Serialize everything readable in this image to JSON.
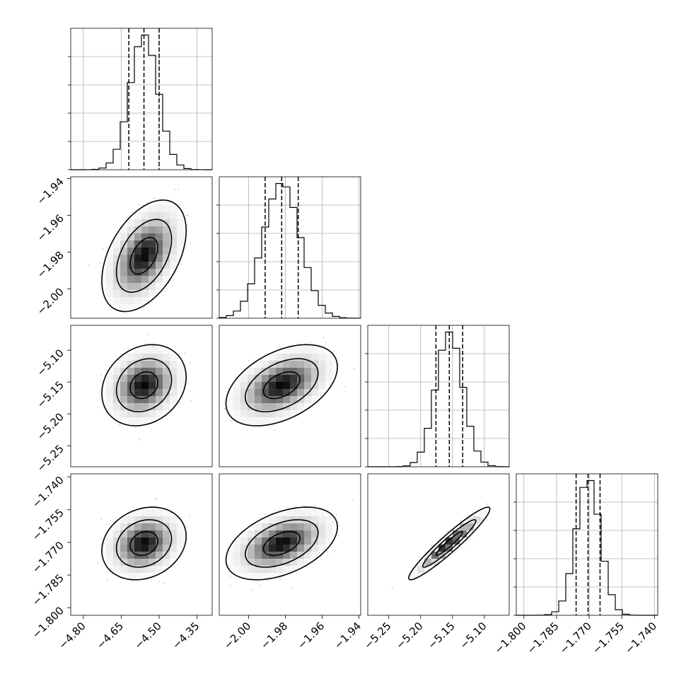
{
  "chart_data": {
    "type": "corner",
    "parameters": [
      {
        "range": [
          -4.85,
          -4.29
        ],
        "mean": -4.56,
        "sd": 0.055,
        "q16": -4.62,
        "q50": -4.56,
        "q84": -4.5,
        "ticks": [
          -4.8,
          -4.65,
          -4.5,
          -4.35
        ],
        "tick_labels": [
          "−4.80",
          "−4.65",
          "−4.50",
          "−4.35"
        ]
      },
      {
        "range": [
          -2.016,
          -1.939
        ],
        "mean": -1.982,
        "sd": 0.01,
        "q16": -1.991,
        "q50": -1.982,
        "q84": -1.973,
        "ticks": [
          -2.0,
          -1.98,
          -1.96,
          -1.94
        ],
        "tick_labels": [
          "−2.00",
          "−1.98",
          "−1.96",
          "−1.94"
        ]
      },
      {
        "range": [
          -5.283,
          -5.061
        ],
        "mean": -5.155,
        "sd": 0.021,
        "q16": -5.176,
        "q50": -5.155,
        "q84": -5.134,
        "ticks": [
          -5.25,
          -5.2,
          -5.15,
          -5.1
        ],
        "tick_labels": [
          "−5.25",
          "−5.20",
          "−5.15",
          "−5.10"
        ]
      },
      {
        "range": [
          -1.8035,
          -1.7385
        ],
        "mean": -1.7705,
        "sd": 0.0055,
        "q16": -1.776,
        "q50": -1.7705,
        "q84": -1.765,
        "ticks": [
          -1.8,
          -1.785,
          -1.77,
          -1.755,
          -1.74
        ],
        "tick_labels": [
          "−1.800",
          "−1.785",
          "−1.770",
          "−1.755",
          "−1.740"
        ]
      }
    ],
    "y_tick_labels": [
      null,
      {
        "ticks": [
          -1.94,
          -1.96,
          -1.98,
          -2.0
        ],
        "labels": [
          "−1.94",
          "−1.96",
          "−1.98",
          "−2.00"
        ]
      },
      {
        "ticks": [
          -5.1,
          -5.15,
          -5.2,
          -5.25
        ],
        "labels": [
          "−5.10",
          "−5.15",
          "−5.20",
          "−5.25"
        ]
      },
      {
        "ticks": [
          -1.74,
          -1.755,
          -1.77,
          -1.785,
          -1.8
        ],
        "labels": [
          "−1.740",
          "−1.755",
          "−1.770",
          "−1.785",
          "−1.800"
        ]
      }
    ],
    "correlations": {
      "1-0": 0.45,
      "2-0": 0.2,
      "2-1": 0.45,
      "3-0": 0.2,
      "3-1": 0.45,
      "3-2": 0.95
    },
    "histogram_bins": 20,
    "grid": true,
    "quantile_lines": "dashed",
    "contour_levels": [
      0.39,
      0.86,
      0.99
    ],
    "colors": {
      "hist": "#000000",
      "points": "#9a9a9a",
      "grid": "#b0b0b0"
    }
  }
}
